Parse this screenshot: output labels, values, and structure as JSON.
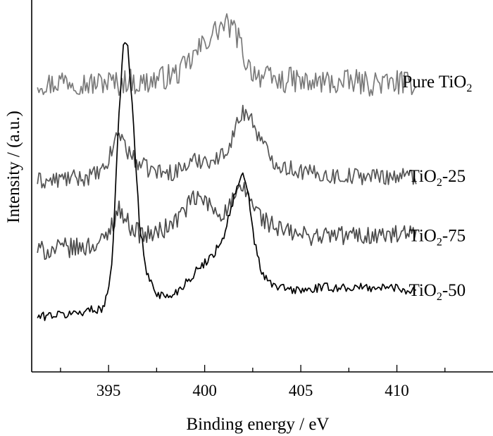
{
  "chart_data": {
    "type": "line",
    "xlabel": "Binding energy / eV",
    "ylabel": "Intensity / (a.u.)",
    "xlim": [
      391,
      415
    ],
    "x_ticks": [
      395,
      400,
      405,
      410
    ],
    "y_ticks_visible": false,
    "grid": false,
    "legend": "inline labels at right end of each curve",
    "x": [
      391.3,
      392.0,
      392.7,
      393.4,
      394.1,
      394.8,
      395.2,
      395.5,
      395.8,
      396.0,
      396.3,
      396.6,
      397.0,
      397.5,
      398.0,
      398.5,
      399.0,
      399.5,
      400.0,
      400.5,
      401.0,
      401.4,
      401.8,
      402.0,
      402.3,
      402.6,
      403.0,
      403.5,
      404.0,
      404.5,
      405.0,
      405.5,
      406.0,
      406.5,
      407.0,
      407.5,
      408.0,
      408.5,
      409.0,
      409.5,
      410.0,
      410.5,
      411.0
    ],
    "series": [
      {
        "name": "Pure TiO2",
        "label_main": "Pure TiO",
        "label_sub": "2",
        "label_suffix": "",
        "color": "#7a7a7a",
        "noise": 5,
        "values": [
          102,
          101,
          103,
          102,
          101,
          102,
          102,
          101,
          102,
          103,
          102,
          101,
          102,
          103,
          104,
          105,
          108,
          113,
          118,
          122,
          125,
          124,
          119,
          113,
          108,
          106,
          104,
          103,
          102,
          103,
          102,
          101,
          102,
          102,
          101,
          102,
          102,
          101,
          102,
          101,
          102,
          101,
          102
        ]
      },
      {
        "name": "TiO2-25",
        "label_main": "TiO",
        "label_sub": "2",
        "label_suffix": "-25",
        "color": "#555555",
        "noise": 3.5,
        "values": [
          62,
          62,
          63,
          63,
          64,
          66,
          75,
          82,
          78,
          74,
          71,
          69,
          67,
          66,
          65,
          66,
          68,
          70,
          71,
          70,
          73,
          79,
          87,
          90,
          89,
          84,
          77,
          71,
          68,
          67,
          66,
          65,
          65,
          64,
          64,
          64,
          64,
          64,
          64,
          64,
          64,
          64,
          64
        ]
      },
      {
        "name": "TiO2-75",
        "label_main": "TiO",
        "label_sub": "2",
        "label_suffix": "-75",
        "color": "#4a4a4a",
        "noise": 4,
        "values": [
          34,
          34,
          35,
          35,
          36,
          38,
          45,
          51,
          48,
          45,
          43,
          41,
          40,
          41,
          43,
          46,
          51,
          55,
          54,
          50,
          49,
          53,
          57,
          59,
          56,
          51,
          47,
          44,
          42,
          41,
          40,
          40,
          40,
          40,
          40,
          40,
          40,
          40,
          40,
          40,
          40,
          40,
          40
        ]
      },
      {
        "name": "TiO2-50",
        "label_main": "TiO",
        "label_sub": "2",
        "label_suffix": "-50",
        "color": "#000000",
        "noise": 1.8,
        "values": [
          7,
          8,
          8,
          9,
          10,
          11,
          30,
          85,
          120,
          115,
          85,
          45,
          24,
          17,
          15,
          17,
          21,
          25,
          29,
          33,
          40,
          52,
          62,
          64,
          55,
          37,
          24,
          20,
          19,
          18,
          18,
          18,
          19,
          19,
          19,
          19,
          19,
          19,
          19,
          19,
          19,
          18,
          18
        ]
      }
    ],
    "ylim": [
      -15,
      135
    ]
  }
}
